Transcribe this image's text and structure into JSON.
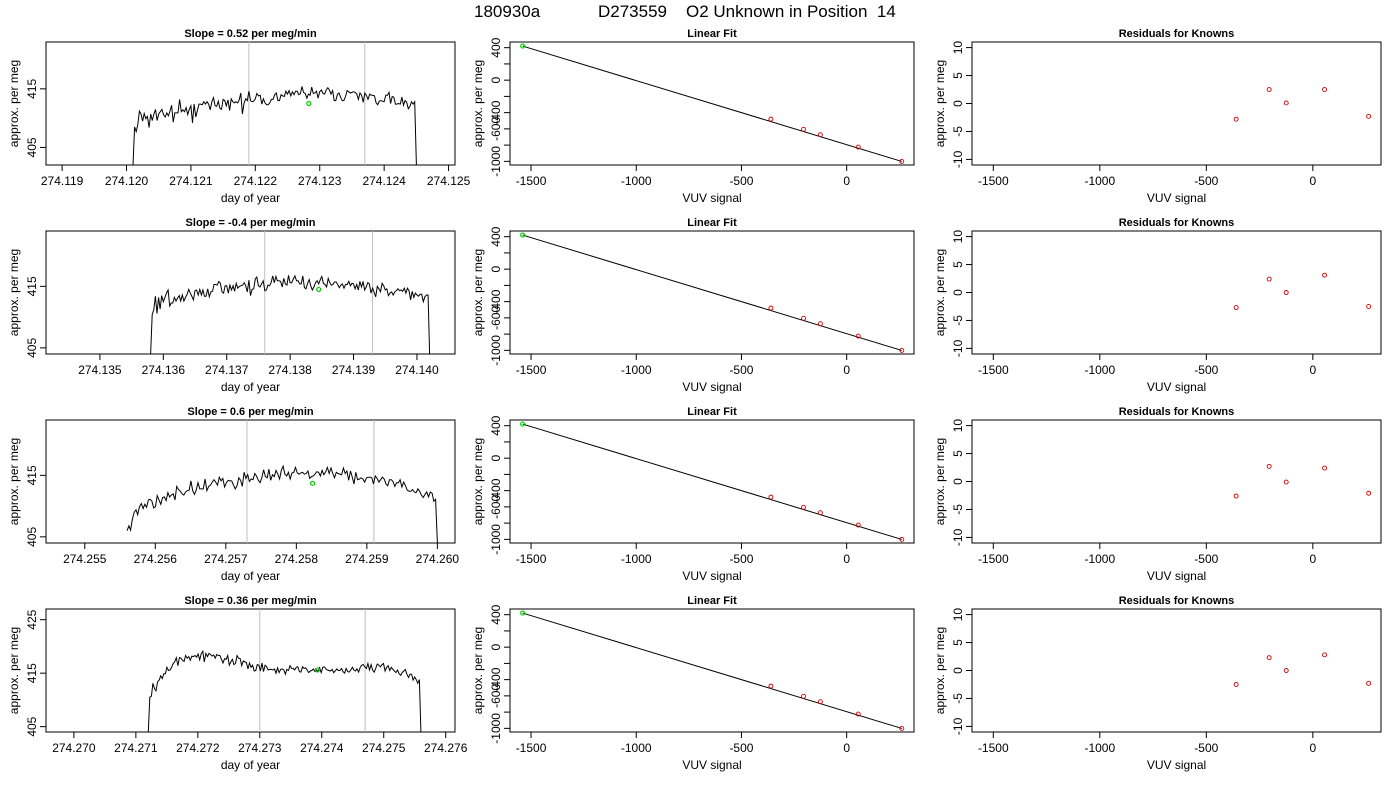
{
  "header": {
    "date": "180930a",
    "sample_id": "D273559",
    "description": "O2 Unknown in Position  14"
  },
  "colors": {
    "trace": "#000000",
    "window_lines": "#bebebe",
    "unknown_point": "#00cd00",
    "known_points": "#cd0000",
    "fit_line": "#000000"
  },
  "chart_data": [
    {
      "type": "line",
      "panel": "timeseries",
      "row": 1,
      "title": "Slope =  0.52  per meg/min",
      "xlabel": "day of year",
      "ylabel": "approx. per meg",
      "xlim": [
        274.11875,
        274.1251
      ],
      "ylim": [
        402,
        423
      ],
      "xticks": [
        274.119,
        274.12,
        274.121,
        274.122,
        274.123,
        274.124,
        274.125
      ],
      "xtick_labels": [
        "274.119",
        "274.120",
        "274.121",
        "274.122",
        "274.123",
        "274.124",
        "274.125"
      ],
      "yticks": [
        405,
        415
      ],
      "ytick_labels": [
        "405",
        "415"
      ],
      "trace_x_range": [
        274.1201,
        274.1245
      ],
      "trace_values": [
        402,
        408.5,
        407.7,
        408.9,
        411.2,
        410.7,
        409.5,
        410.8,
        409.9,
        410.3,
        408.4,
        410.7,
        409.6,
        410.7,
        411.5,
        409.6,
        410.7,
        411.1,
        411.5,
        410.6,
        410.2,
        410.9,
        410.4,
        411.2,
        412.2,
        409.3,
        410.9,
        410.9,
        410.9,
        413.2,
        411.1,
        411.4,
        411.1,
        411.8,
        410.6,
        411.5,
        412.1,
        409.2,
        412.4,
        410.2,
        411.3,
        412.4,
        412.4,
        412.3,
        412.8,
        412.4,
        412.8,
        412.4,
        411.4,
        412.8,
        413.5,
        412.1,
        412,
        412.9,
        411.7,
        411.5,
        413.2,
        413,
        412.1,
        413.1,
        411.3,
        413.3,
        412.8,
        412.6,
        412.8,
        412.6,
        413.1,
        414.3,
        410.7,
        412.6,
        413.3,
        413,
        414.6,
        413,
        412.8,
        412.9,
        413.3,
        414.2,
        413.8,
        413.9,
        412.4,
        413.3,
        412.6,
        412.3,
        412.3,
        412.6,
        413.2,
        413.2,
        414,
        414.3,
        413,
        413,
        414,
        413.8,
        413.7,
        414.6,
        414.1,
        414.7,
        413.8,
        414.5,
        414,
        414.6,
        414.6,
        414,
        414.2,
        415.4,
        414.4,
        414.2,
        413.4,
        414.1,
        413.9,
        415.3,
        414.2,
        414.3,
        414.6,
        413.4,
        414.5,
        414.8,
        414.2,
        414.1,
        414.8,
        415.2,
        414.8,
        414.1,
        414.7,
        413,
        413,
        414.1,
        414.3,
        413.5,
        413,
        413,
        413.7,
        414.7,
        414.5,
        414.3,
        414.4,
        414.5,
        414.4,
        414.1,
        413.2,
        414.3,
        413.9,
        412.7,
        414.3,
        413.9,
        413.2,
        414.1,
        413.9,
        413.9,
        413.8,
        412.6,
        412.3,
        412.9,
        413,
        412.9,
        412.8,
        413.9,
        413.9,
        414.4,
        412.5,
        413.7,
        413.6,
        412.4,
        412.4,
        412.5,
        412.4,
        413.6,
        412.2,
        413,
        412.7,
        411.6,
        412,
        412.8,
        412.4,
        412.8,
        402
      ],
      "unknown_marker": {
        "x": 274.12283,
        "y": 412.5
      },
      "window_lines_x": [
        274.1219,
        274.1237
      ]
    },
    {
      "type": "line",
      "panel": "timeseries",
      "row": 2,
      "title": "Slope =  -0.4  per meg/min",
      "xlabel": "day of year",
      "ylabel": "approx. per meg",
      "xlim": [
        274.13415,
        274.1406
      ],
      "ylim": [
        404,
        424
      ],
      "xticks": [
        274.135,
        274.136,
        274.137,
        274.138,
        274.139,
        274.14
      ],
      "xtick_labels": [
        "274.135",
        "274.136",
        "274.137",
        "274.138",
        "274.139",
        "274.140"
      ],
      "yticks": [
        405,
        415
      ],
      "ytick_labels": [
        "405",
        "415"
      ],
      "trace_x_range": [
        274.1358,
        274.1402
      ],
      "trace_values": [
        404,
        410.4,
        411.2,
        413.4,
        410.6,
        413.2,
        411.3,
        413.5,
        412.5,
        413.2,
        413.9,
        414.4,
        411.8,
        412.3,
        412.3,
        413.2,
        412.6,
        413.1,
        413.5,
        412.6,
        413.6,
        412.6,
        413.2,
        413.7,
        414.5,
        413.9,
        413.4,
        412.8,
        414.3,
        414.4,
        413.6,
        414.5,
        413.6,
        414.4,
        413.4,
        413.4,
        414.6,
        413.3,
        414.1,
        414.2,
        415.3,
        415.3,
        415.2,
        415.8,
        415.5,
        414.1,
        413.9,
        415.1,
        415.1,
        413.9,
        415.2,
        414.4,
        415.1,
        414.2,
        415.5,
        414.7,
        415,
        415.1,
        415.2,
        415.6,
        415.1,
        414.1,
        416,
        413.5,
        414.5,
        414.6,
        416.2,
        416.5,
        415.1,
        414.9,
        415.4,
        415.9,
        414.3,
        414.4,
        415.2,
        415.1,
        415.6,
        416.7,
        415.6,
        416.6,
        415.9,
        415.9,
        415.8,
        414.9,
        416.3,
        415.4,
        415.2,
        416.8,
        415.6,
        415.6,
        416.2,
        416.7,
        415.9,
        415.9,
        415.4,
        415.4,
        416.7,
        414.8,
        414.6,
        415.5,
        416.1,
        415.1,
        414.4,
        414.9,
        415.6,
        415.9,
        415.4,
        416.1,
        416.6,
        415.5,
        415.3,
        414.9,
        416.3,
        415.6,
        415.2,
        415.3,
        415.7,
        415.7,
        415.3,
        414.8,
        415.2,
        415.4,
        414.7,
        415.3,
        415.3,
        415.8,
        415.1,
        415.5,
        415.4,
        414.6,
        415.3,
        414.4,
        415.8,
        414.9,
        415.8,
        414.4,
        414.9,
        415.6,
        415.4,
        413.9,
        414.7,
        414,
        413.3,
        415,
        414.6,
        414.1,
        415.5,
        415.1,
        414.4,
        414.6,
        413.5,
        413.9,
        414.1,
        413.6,
        414.1,
        414.3,
        414.6,
        414.3,
        414.4,
        414.2,
        414.7,
        413.9,
        414.7,
        414.3,
        412.8,
        414.2,
        413.2,
        413.9,
        413.6,
        413.4,
        413.7,
        413.7,
        412.5,
        413.3,
        413.6,
        413.6,
        404
      ],
      "unknown_marker": {
        "x": 274.13845,
        "y": 414.5
      },
      "window_lines_x": [
        274.1376,
        274.1393
      ]
    },
    {
      "type": "line",
      "panel": "timeseries",
      "row": 3,
      "title": "Slope =  0.6  per meg/min",
      "xlabel": "day of year",
      "ylabel": "approx. per meg",
      "xlim": [
        274.25445,
        274.26025
      ],
      "ylim": [
        404,
        424
      ],
      "xticks": [
        274.255,
        274.256,
        274.257,
        274.258,
        274.259,
        274.26
      ],
      "xtick_labels": [
        "274.255",
        "274.256",
        "274.257",
        "274.258",
        "274.259",
        "274.260"
      ],
      "yticks": [
        405,
        415
      ],
      "ytick_labels": [
        "405",
        "415"
      ],
      "trace_x_range": [
        274.2556,
        274.26
      ],
      "trace_values": [
        406,
        406.8,
        406.1,
        407.9,
        409,
        409.4,
        408.6,
        409.9,
        410.4,
        409.6,
        410.3,
        409.8,
        411,
        411.1,
        410.8,
        409.7,
        409.9,
        411.7,
        411,
        410.3,
        411.4,
        411.5,
        410.9,
        412.2,
        411.5,
        411.8,
        412,
        411,
        413.2,
        412.7,
        412.4,
        412,
        411.8,
        412.3,
        412.5,
        412.6,
        414.1,
        412.5,
        411.9,
        412.6,
        413.8,
        412.8,
        412.8,
        412.8,
        414.4,
        412.5,
        413.2,
        413.4,
        413.9,
        414.3,
        413.9,
        413.4,
        414.7,
        414.1,
        414.5,
        413.1,
        413.8,
        414.2,
        414.1,
        414.1,
        413.4,
        412.8,
        413.3,
        414.6,
        414.2,
        413.2,
        415.5,
        414.5,
        415.1,
        414,
        414.4,
        414.3,
        415.3,
        414.9,
        414.2,
        413.8,
        414.6,
        415.9,
        414.8,
        414.6,
        416,
        414.2,
        415.1,
        414.8,
        415.8,
        415.2,
        414.4,
        415.8,
        416.5,
        415.2,
        414.9,
        415.5,
        414.4,
        415.4,
        415.5,
        416.3,
        415.4,
        415.2,
        415.4,
        415.5,
        415.2,
        415.3,
        415.7,
        414.5,
        414.8,
        414.9,
        415.2,
        415.6,
        415.5,
        414.9,
        415.8,
        415.1,
        415.6,
        416.3,
        415.3,
        416.2,
        415.3,
        414.6,
        415.5,
        415.3,
        415.2,
        415.1,
        416.2,
        415.3,
        415.7,
        414.2,
        415.7,
        414.7,
        413.6,
        415.5,
        414.3,
        414.4,
        414.6,
        414.4,
        413.9,
        414.6,
        414.7,
        414.7,
        414.6,
        413.6,
        414.9,
        414.5,
        413.9,
        414.3,
        414.7,
        414.4,
        413.6,
        413.3,
        414.3,
        414.3,
        414,
        413.2,
        413.8,
        413.8,
        414.3,
        413.1,
        413.9,
        413.3,
        412.6,
        412.4,
        412.4,
        412.7,
        412.3,
        412.2,
        412.8,
        412.4,
        411.8,
        411.4,
        411.9,
        412.3,
        411.5,
        412.3,
        412.1,
        410.8,
        411.1,
        404
      ],
      "unknown_marker": {
        "x": 274.25823,
        "y": 413.7
      },
      "window_lines_x": [
        274.2573,
        274.2591
      ]
    },
    {
      "type": "line",
      "panel": "timeseries",
      "row": 4,
      "title": "Slope =  0.36  per meg/min",
      "xlabel": "day of year",
      "ylabel": "approx. per meg",
      "xlim": [
        274.26955,
        274.27615
      ],
      "ylim": [
        404,
        427
      ],
      "xticks": [
        274.27,
        274.271,
        274.272,
        274.273,
        274.274,
        274.275,
        274.276
      ],
      "xtick_labels": [
        "274.270",
        "274.271",
        "274.272",
        "274.273",
        "274.274",
        "274.275",
        "274.276"
      ],
      "yticks": [
        405,
        415,
        425
      ],
      "ytick_labels": [
        "405",
        "415",
        "425"
      ],
      "trace_x_range": [
        274.2712,
        274.2756
      ],
      "trace_values": [
        404,
        410.5,
        410.7,
        413.1,
        412.1,
        411.7,
        413.4,
        413.7,
        414.5,
        414,
        414.9,
        414.9,
        416.1,
        415.5,
        415.6,
        416.1,
        416.8,
        417.1,
        417.9,
        416.4,
        417.9,
        417.8,
        417.4,
        417.2,
        418.3,
        417.8,
        418.1,
        417.4,
        418.2,
        418.1,
        418.3,
        418,
        418.6,
        417.5,
        418.6,
        419.1,
        417.1,
        418.7,
        418.1,
        418.7,
        418.5,
        418.2,
        418.4,
        417.8,
        418.5,
        418.3,
        418.3,
        417.6,
        416.9,
        417.7,
        417.6,
        418.3,
        416.5,
        417.1,
        417.6,
        416.6,
        416.8,
        418.3,
        417.8,
        417.7,
        416.4,
        417.3,
        417.1,
        417,
        415.8,
        416.9,
        416.1,
        416.5,
        415.4,
        415.5,
        416.6,
        416.5,
        415.4,
        416.9,
        415.3,
        416.5,
        416.2,
        415.6,
        415.7,
        415.7,
        415.6,
        415.8,
        415,
        416,
        415.1,
        415.7,
        415.8,
        415.6,
        414.8,
        415.7,
        415.5,
        416.4,
        415.9,
        415.9,
        415.6,
        416.1,
        416.2,
        415.3,
        415.2,
        416.2,
        415.9,
        416,
        415.6,
        415.1,
        415.4,
        415.5,
        415.8,
        415.3,
        415.6,
        415.3,
        416,
        415.1,
        416.1,
        416.2,
        415.8,
        415.6,
        415.5,
        415.4,
        415.7,
        415.1,
        415.4,
        415.8,
        415.5,
        415.5,
        415.9,
        415.3,
        415,
        415.9,
        415.3,
        415.2,
        415.6,
        416.1,
        415.6,
        415.4,
        415.8,
        415.2,
        416.1,
        416.5,
        416.6,
        416.2,
        415.9,
        416.8,
        415.6,
        416.6,
        415.6,
        415.2,
        415.9,
        416.7,
        416.5,
        416.2,
        416.6,
        416.8,
        415.4,
        416.1,
        416.4,
        415.5,
        416.1,
        415.7,
        415.4,
        415.1,
        415.6,
        414.9,
        414.6,
        415.1,
        415.4,
        415.7,
        414.8,
        414.2,
        414.8,
        414.8,
        413.7,
        414.3,
        413.8,
        413.1,
        413.8,
        404
      ],
      "unknown_marker": {
        "x": 274.27393,
        "y": 415.6
      },
      "window_lines_x": [
        274.273,
        274.2747
      ]
    },
    {
      "type": "scatter",
      "panel": "linear_fit",
      "rows": [
        1,
        2,
        3,
        4
      ],
      "title": "Linear Fit",
      "xlabel": "VUV signal",
      "ylabel": "approx. per meg",
      "xlim": [
        -1600,
        320
      ],
      "ylim": [
        -1045,
        470
      ],
      "xticks": [
        -1500,
        -1000,
        -500,
        0
      ],
      "xtick_labels": [
        "-1500",
        "-1000",
        "-500",
        "0"
      ],
      "yticks": [
        -1000,
        -800,
        -600,
        -400,
        -200,
        0,
        200,
        400
      ],
      "ytick_labels": [
        "-1000",
        "",
        "-600",
        "-400",
        "",
        "0",
        "",
        "400"
      ],
      "fit_line": {
        "x": [
          -1540,
          262
        ],
        "y": [
          420,
          -1001
        ]
      },
      "unknown_point": {
        "x": -1540,
        "y": 420
      },
      "known_points": {
        "x": [
          -360,
          -205,
          -125,
          55,
          262
        ],
        "y": [
          -480,
          -606,
          -672,
          -824,
          -1001
        ]
      }
    },
    {
      "type": "scatter",
      "panel": "residuals",
      "rows": [
        1,
        2,
        3,
        4
      ],
      "title": "Residuals for Knowns",
      "xlabel": "VUV signal",
      "ylabel": "approx. per meg",
      "xlim": [
        -1600,
        320
      ],
      "ylim": [
        -11,
        11
      ],
      "xticks": [
        -1500,
        -1000,
        -500,
        0
      ],
      "xtick_labels": [
        "-1500",
        "-1000",
        "-500",
        "0"
      ],
      "yticks": [
        -10,
        -5,
        0,
        5,
        10
      ],
      "ytick_labels": [
        "-10",
        "-5",
        "0",
        "5",
        "10"
      ],
      "rows_data": [
        {
          "x": [
            -360,
            -205,
            -125,
            55,
            262
          ],
          "y": [
            -2.8,
            2.5,
            0.1,
            2.5,
            -2.3
          ]
        },
        {
          "x": [
            -360,
            -205,
            -125,
            55,
            262
          ],
          "y": [
            -2.7,
            2.4,
            0.0,
            3.1,
            -2.5
          ]
        },
        {
          "x": [
            -360,
            -205,
            -125,
            55,
            262
          ],
          "y": [
            -2.6,
            2.7,
            -0.1,
            2.4,
            -2.1
          ]
        },
        {
          "x": [
            -360,
            -205,
            -125,
            55,
            262
          ],
          "y": [
            -2.5,
            2.3,
            0.0,
            2.8,
            -2.3
          ]
        }
      ]
    }
  ]
}
